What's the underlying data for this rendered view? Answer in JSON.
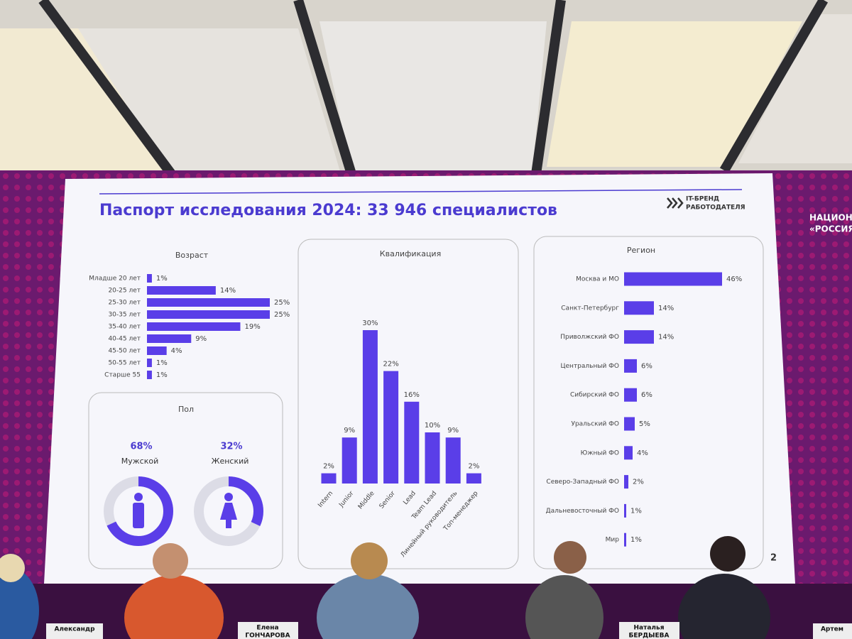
{
  "slide": {
    "title": "Паспорт исследования 2024: 33 946 специалистов",
    "logo_line1": "IT-БРЕНД",
    "logo_line2": "РАБОТОДАТЕЛЯ",
    "page": "2"
  },
  "scene": {
    "side_text_1": "НАЦИОНА",
    "side_text_2": "«РОССИЯ",
    "plates": [
      "Александр",
      "Елена",
      "ГОНЧАРОВА",
      "Наталья",
      "БЕРДЫЕВА",
      "Артем"
    ]
  },
  "chart_data": [
    {
      "type": "barh",
      "title": "Возраст",
      "color": "#5a3ee8",
      "categories": [
        "Младше 20 лет",
        "20-25 лет",
        "25-30 лет",
        "30-35 лет",
        "35-40 лет",
        "40-45 лет",
        "45-50 лет",
        "50-55 лет",
        "Старше 55"
      ],
      "values": [
        1,
        14,
        25,
        25,
        19,
        9,
        4,
        1,
        1
      ],
      "value_labels": [
        "1%",
        "14%",
        "25%",
        "25%",
        "19%",
        "9%",
        "4%",
        "1%",
        "1%"
      ]
    },
    {
      "type": "donut",
      "title": "Пол",
      "color": "#5a3ee8",
      "categories": [
        "Мужской",
        "Женский"
      ],
      "values": [
        68,
        32
      ],
      "value_labels": [
        "68%",
        "32%"
      ]
    },
    {
      "type": "bar",
      "title": "Квалификация",
      "color": "#5a3ee8",
      "categories": [
        "Intern",
        "Junior",
        "Middle",
        "Senior",
        "Lead",
        "Team Lead",
        "Линейный руководитель",
        "Топ-менеджер"
      ],
      "values": [
        2,
        9,
        30,
        22,
        16,
        10,
        9,
        2
      ],
      "value_labels": [
        "2%",
        "9%",
        "30%",
        "22%",
        "16%",
        "10%",
        "9%",
        "2%"
      ]
    },
    {
      "type": "barh",
      "title": "Регион",
      "color": "#5a3ee8",
      "categories": [
        "Москва и МО",
        "Санкт-Петербург",
        "Приволжский ФО",
        "Центральный ФО",
        "Сибирский ФО",
        "Уральский ФО",
        "Южный ФО",
        "Северо-Западный ФО",
        "Дальневосточный ФО",
        "Мир"
      ],
      "values": [
        46,
        14,
        14,
        6,
        6,
        5,
        4,
        2,
        1,
        1
      ],
      "value_labels": [
        "46%",
        "14%",
        "14%",
        "6%",
        "6%",
        "5%",
        "4%",
        "2%",
        "1%",
        "1%"
      ]
    }
  ]
}
